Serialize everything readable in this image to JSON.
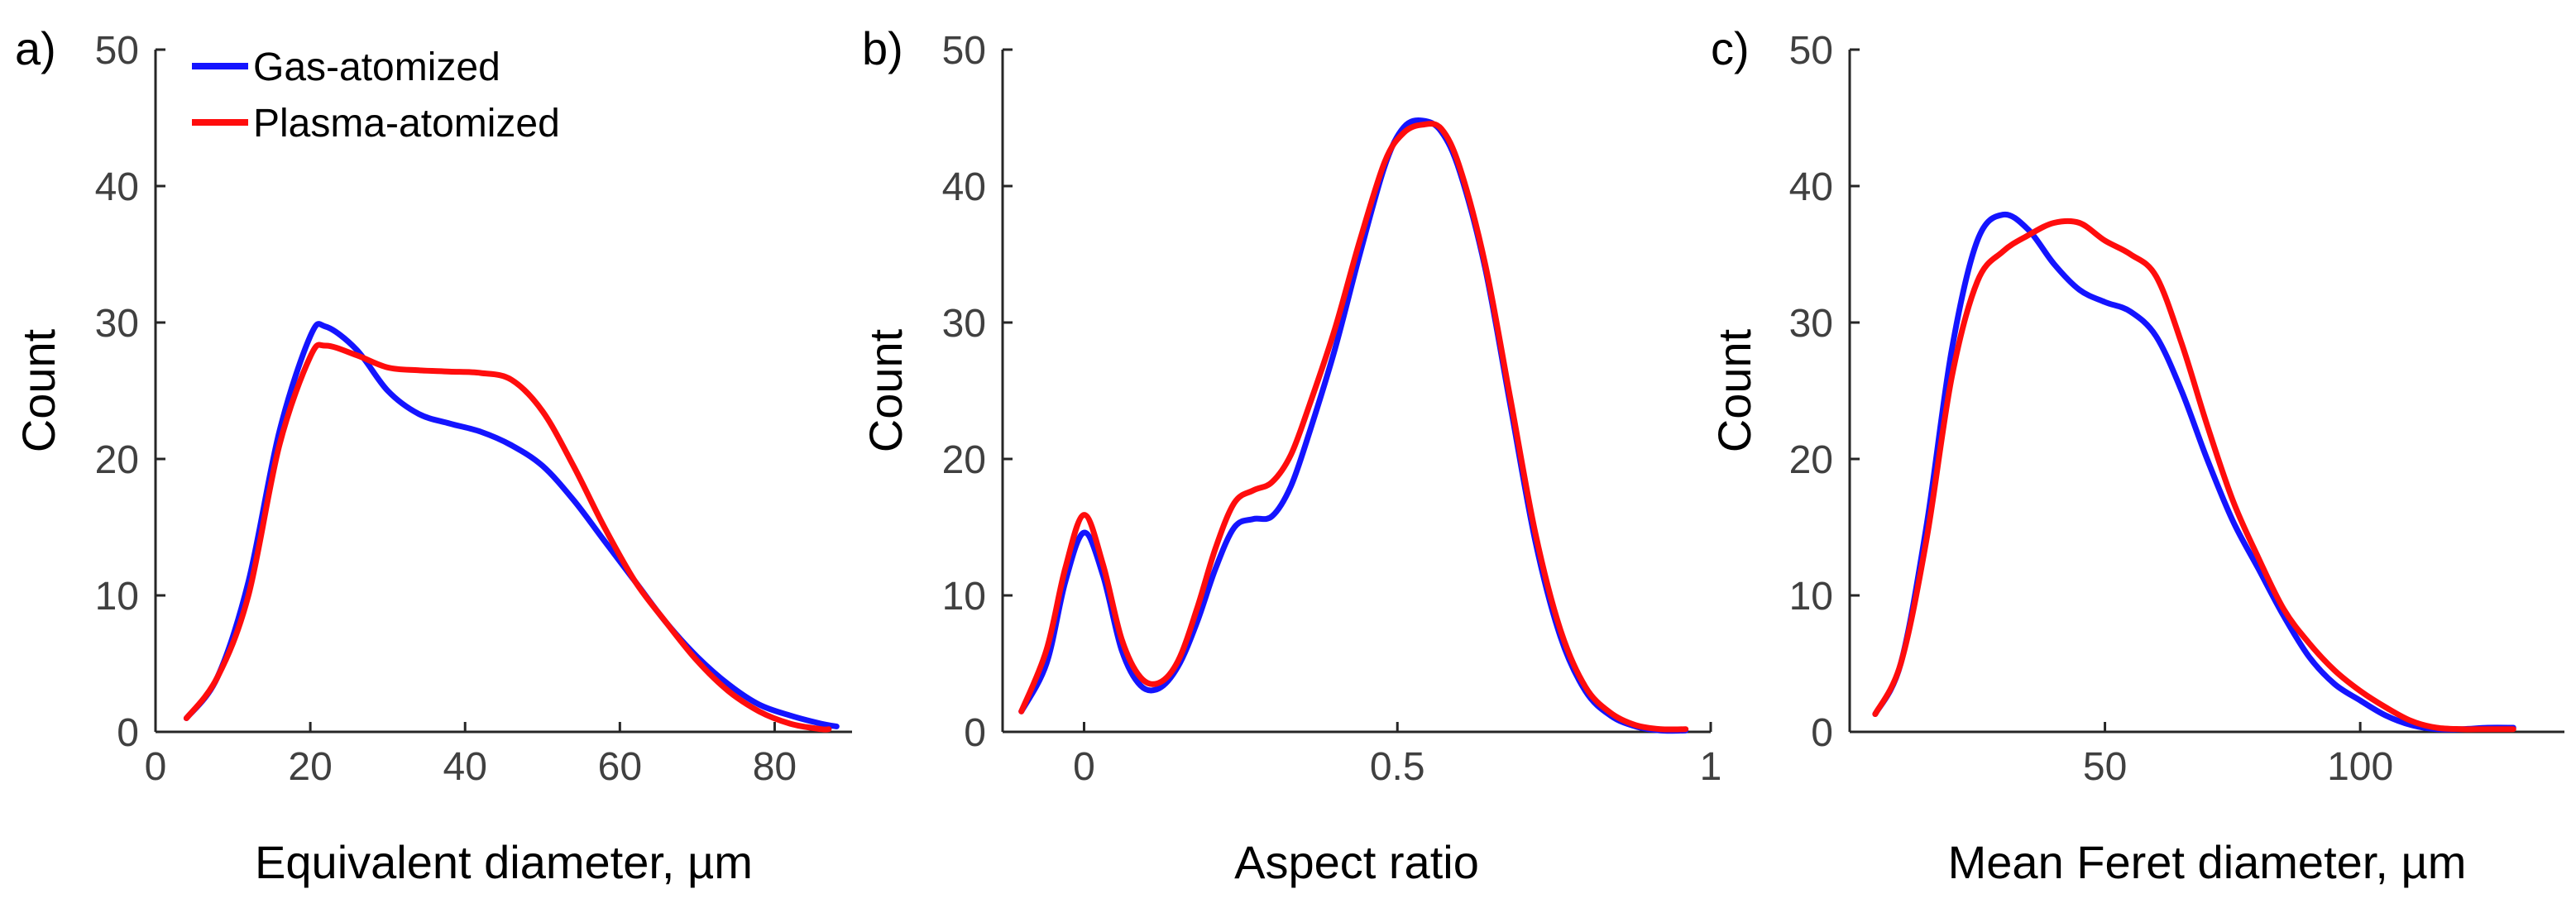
{
  "figure": {
    "legend": [
      {
        "label": "Gas-atomized",
        "color": "#1414ff"
      },
      {
        "label": "Plasma-atomized",
        "color": "#ff0d0d"
      }
    ]
  },
  "chart_data": [
    {
      "type": "line",
      "panel_label": "a)",
      "title": "",
      "xlabel": "Equivalent diameter, µm",
      "ylabel": "Count",
      "xlim": [
        0,
        90
      ],
      "ylim": [
        0,
        50
      ],
      "xticks": [
        0,
        20,
        40,
        60,
        80
      ],
      "xtick_labels": [
        "0",
        "20",
        "40",
        "60",
        "80"
      ],
      "yticks": [
        0,
        10,
        20,
        30,
        40,
        50
      ],
      "ytick_labels": [
        "0",
        "10",
        "20",
        "30",
        "40",
        "50"
      ],
      "legend_position": "top-left",
      "series": [
        {
          "name": "Gas-atomized",
          "color": "#1414ff",
          "x": [
            4,
            8,
            12,
            16,
            20,
            22,
            26,
            30,
            34,
            38,
            42,
            46,
            50,
            54,
            58,
            62,
            66,
            70,
            74,
            78,
            82,
            86,
            88
          ],
          "y": [
            1,
            4,
            11,
            22,
            29,
            29.7,
            28,
            25,
            23.3,
            22.6,
            22,
            21,
            19.5,
            17,
            14,
            11,
            8,
            5.5,
            3.5,
            2,
            1.2,
            0.6,
            0.4
          ]
        },
        {
          "name": "Plasma-atomized",
          "color": "#ff0d0d",
          "x": [
            4,
            8,
            12,
            16,
            20,
            22,
            26,
            30,
            34,
            38,
            42,
            46,
            50,
            54,
            58,
            62,
            66,
            70,
            74,
            78,
            82,
            86,
            87
          ],
          "y": [
            1,
            4,
            10,
            21,
            27.5,
            28.3,
            27.6,
            26.7,
            26.5,
            26.4,
            26.3,
            25.8,
            23.5,
            19.5,
            15,
            11,
            8,
            5.2,
            3,
            1.5,
            0.6,
            0.2,
            0.2
          ]
        }
      ]
    },
    {
      "type": "line",
      "panel_label": "b)",
      "title": "",
      "xlabel": "Aspect ratio",
      "ylabel": "Count",
      "xlim": [
        -0.13,
        1.0
      ],
      "ylim": [
        0,
        50
      ],
      "xticks": [
        0,
        0.5,
        1
      ],
      "xtick_labels": [
        "0",
        "0.5",
        "1"
      ],
      "yticks": [
        0,
        10,
        20,
        30,
        40,
        50
      ],
      "ytick_labels": [
        "0",
        "10",
        "20",
        "30",
        "40",
        "50"
      ],
      "legend_position": "none",
      "series": [
        {
          "name": "Gas-atomized",
          "color": "#1414ff",
          "x": [
            -0.1,
            -0.06,
            -0.03,
            0,
            0.03,
            0.06,
            0.09,
            0.12,
            0.15,
            0.18,
            0.21,
            0.24,
            0.27,
            0.3,
            0.33,
            0.36,
            0.4,
            0.44,
            0.48,
            0.51,
            0.54,
            0.57,
            0.6,
            0.64,
            0.68,
            0.72,
            0.76,
            0.8,
            0.84,
            0.88,
            0.92,
            0.96
          ],
          "y": [
            1.5,
            5,
            11,
            14.6,
            11.5,
            6,
            3.4,
            3.2,
            4.8,
            8,
            12,
            15,
            15.6,
            15.8,
            18,
            22,
            28,
            35,
            41.5,
            44.3,
            44.8,
            44,
            41,
            34,
            24,
            14,
            7,
            3,
            1.2,
            0.4,
            0.1,
            0.1
          ]
        },
        {
          "name": "Plasma-atomized",
          "color": "#ff0d0d",
          "x": [
            -0.1,
            -0.06,
            -0.03,
            0,
            0.03,
            0.06,
            0.09,
            0.12,
            0.15,
            0.18,
            0.21,
            0.24,
            0.27,
            0.3,
            0.33,
            0.36,
            0.4,
            0.44,
            0.48,
            0.51,
            0.54,
            0.57,
            0.6,
            0.64,
            0.68,
            0.72,
            0.76,
            0.8,
            0.84,
            0.88,
            0.92,
            0.96
          ],
          "y": [
            1.5,
            6,
            12,
            15.9,
            12.3,
            6.8,
            4,
            3.6,
            5.2,
            9,
            13.5,
            16.8,
            17.7,
            18.3,
            20.3,
            24,
            29.5,
            36,
            41.8,
            43.9,
            44.5,
            44.2,
            41.3,
            34.3,
            24.5,
            14.6,
            7.5,
            3.3,
            1.4,
            0.5,
            0.2,
            0.2
          ]
        }
      ]
    },
    {
      "type": "line",
      "panel_label": "c)",
      "title": "",
      "xlabel": "Mean Feret diameter, µm",
      "ylabel": "Count",
      "xlim": [
        0,
        140
      ],
      "ylim": [
        0,
        50
      ],
      "xticks": [
        50,
        100
      ],
      "xtick_labels": [
        "50",
        "100"
      ],
      "yticks": [
        0,
        10,
        20,
        30,
        40,
        50
      ],
      "ytick_labels": [
        "0",
        "10",
        "20",
        "30",
        "40",
        "50"
      ],
      "legend_position": "none",
      "series": [
        {
          "name": "Gas-atomized",
          "color": "#1414ff",
          "x": [
            5,
            10,
            15,
            20,
            25,
            30,
            35,
            40,
            45,
            50,
            55,
            60,
            65,
            70,
            75,
            80,
            85,
            90,
            95,
            100,
            105,
            110,
            115,
            120,
            125,
            130
          ],
          "y": [
            1.3,
            5,
            15,
            28,
            36,
            37.9,
            36.8,
            34.3,
            32.4,
            31.5,
            30.8,
            29,
            25,
            20,
            15.5,
            12,
            8.5,
            5.5,
            3.5,
            2.3,
            1.2,
            0.5,
            0.2,
            0.2,
            0.3,
            0.3
          ]
        },
        {
          "name": "Plasma-atomized",
          "color": "#ff0d0d",
          "x": [
            5,
            10,
            15,
            20,
            25,
            30,
            35,
            40,
            45,
            50,
            55,
            60,
            65,
            70,
            75,
            80,
            85,
            90,
            95,
            100,
            105,
            110,
            115,
            120,
            125,
            130
          ],
          "y": [
            1.3,
            5,
            14,
            26,
            33,
            35.2,
            36.4,
            37.3,
            37.3,
            36,
            35,
            33.4,
            28.5,
            22.5,
            17,
            12.8,
            9,
            6.5,
            4.5,
            3,
            1.8,
            0.8,
            0.3,
            0.2,
            0.2,
            0.2
          ]
        }
      ]
    }
  ]
}
